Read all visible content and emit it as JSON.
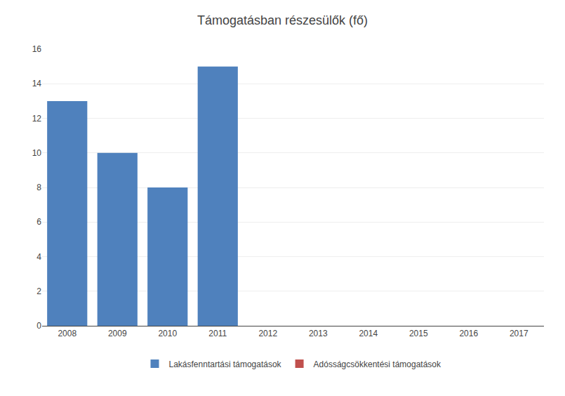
{
  "chart_data": {
    "type": "bar",
    "title": "Támogatásban részesülők (fő)",
    "categories": [
      "2008",
      "2009",
      "2010",
      "2011",
      "2012",
      "2013",
      "2014",
      "2015",
      "2016",
      "2017"
    ],
    "series": [
      {
        "name": "Lakásfenntartási támogatások",
        "color": "#4F81BD",
        "values": [
          13,
          10,
          8,
          15,
          0,
          0,
          0,
          0,
          0,
          0
        ]
      },
      {
        "name": "Adósságcsökkentési támogatások",
        "color": "#C0504D",
        "values": [
          0,
          0,
          0,
          0,
          0,
          0,
          0,
          0,
          0,
          0
        ]
      }
    ],
    "ylim": [
      0,
      16
    ],
    "yticks": [
      0,
      2,
      4,
      6,
      8,
      10,
      12,
      14,
      16
    ],
    "grid": true,
    "legend": "bottom"
  }
}
